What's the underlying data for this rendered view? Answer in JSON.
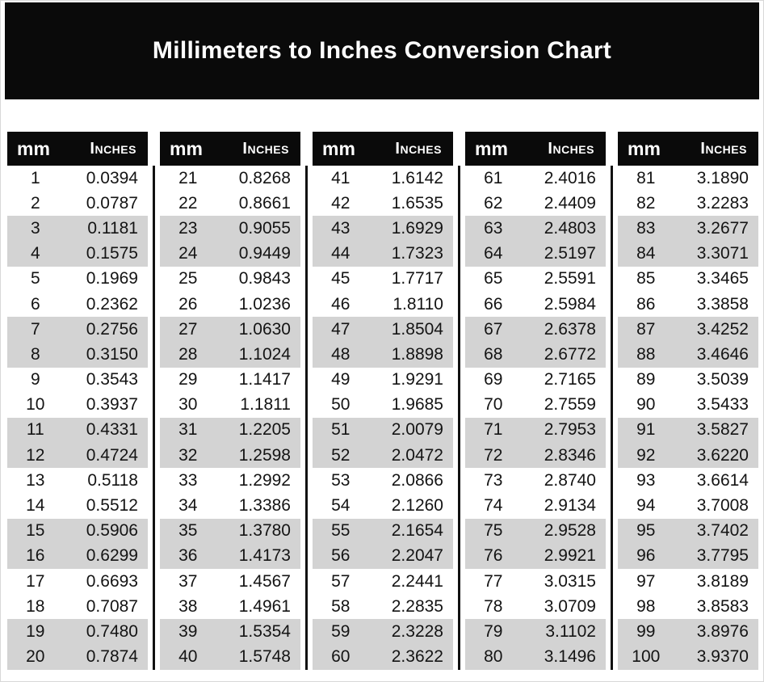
{
  "title": "Millimeters to Inches Conversion Chart",
  "colors": {
    "banner_bg": "#0a0a0a",
    "header_bg": "#0a0a0a",
    "header_text": "#ffffff",
    "stripe": "#d3d3d3",
    "divider": "#111111",
    "value_text": "#141414"
  },
  "chart_data": {
    "type": "table",
    "title": "Millimeters to Inches Conversion Chart",
    "columns": [
      "mm",
      "Inches"
    ],
    "stripe_pattern": "rows shaded in alternating pairs: rows 3-4, 7-8, 11-12, 15-16, 19-20 of each sub-table",
    "tables": [
      {
        "rows": [
          [
            "1",
            "0.0394"
          ],
          [
            "2",
            "0.0787"
          ],
          [
            "3",
            "0.1181"
          ],
          [
            "4",
            "0.1575"
          ],
          [
            "5",
            "0.1969"
          ],
          [
            "6",
            "0.2362"
          ],
          [
            "7",
            "0.2756"
          ],
          [
            "8",
            "0.3150"
          ],
          [
            "9",
            "0.3543"
          ],
          [
            "10",
            "0.3937"
          ],
          [
            "11",
            "0.4331"
          ],
          [
            "12",
            "0.4724"
          ],
          [
            "13",
            "0.5118"
          ],
          [
            "14",
            "0.5512"
          ],
          [
            "15",
            "0.5906"
          ],
          [
            "16",
            "0.6299"
          ],
          [
            "17",
            "0.6693"
          ],
          [
            "18",
            "0.7087"
          ],
          [
            "19",
            "0.7480"
          ],
          [
            "20",
            "0.7874"
          ]
        ]
      },
      {
        "rows": [
          [
            "21",
            "0.8268"
          ],
          [
            "22",
            "0.8661"
          ],
          [
            "23",
            "0.9055"
          ],
          [
            "24",
            "0.9449"
          ],
          [
            "25",
            "0.9843"
          ],
          [
            "26",
            "1.0236"
          ],
          [
            "27",
            "1.0630"
          ],
          [
            "28",
            "1.1024"
          ],
          [
            "29",
            "1.1417"
          ],
          [
            "30",
            "1.1811"
          ],
          [
            "31",
            "1.2205"
          ],
          [
            "32",
            "1.2598"
          ],
          [
            "33",
            "1.2992"
          ],
          [
            "34",
            "1.3386"
          ],
          [
            "35",
            "1.3780"
          ],
          [
            "36",
            "1.4173"
          ],
          [
            "37",
            "1.4567"
          ],
          [
            "38",
            "1.4961"
          ],
          [
            "39",
            "1.5354"
          ],
          [
            "40",
            "1.5748"
          ]
        ]
      },
      {
        "rows": [
          [
            "41",
            "1.6142"
          ],
          [
            "42",
            "1.6535"
          ],
          [
            "43",
            "1.6929"
          ],
          [
            "44",
            "1.7323"
          ],
          [
            "45",
            "1.7717"
          ],
          [
            "46",
            "1.8110"
          ],
          [
            "47",
            "1.8504"
          ],
          [
            "48",
            "1.8898"
          ],
          [
            "49",
            "1.9291"
          ],
          [
            "50",
            "1.9685"
          ],
          [
            "51",
            "2.0079"
          ],
          [
            "52",
            "2.0472"
          ],
          [
            "53",
            "2.0866"
          ],
          [
            "54",
            "2.1260"
          ],
          [
            "55",
            "2.1654"
          ],
          [
            "56",
            "2.2047"
          ],
          [
            "57",
            "2.2441"
          ],
          [
            "58",
            "2.2835"
          ],
          [
            "59",
            "2.3228"
          ],
          [
            "60",
            "2.3622"
          ]
        ]
      },
      {
        "rows": [
          [
            "61",
            "2.4016"
          ],
          [
            "62",
            "2.4409"
          ],
          [
            "63",
            "2.4803"
          ],
          [
            "64",
            "2.5197"
          ],
          [
            "65",
            "2.5591"
          ],
          [
            "66",
            "2.5984"
          ],
          [
            "67",
            "2.6378"
          ],
          [
            "68",
            "2.6772"
          ],
          [
            "69",
            "2.7165"
          ],
          [
            "70",
            "2.7559"
          ],
          [
            "71",
            "2.7953"
          ],
          [
            "72",
            "2.8346"
          ],
          [
            "73",
            "2.8740"
          ],
          [
            "74",
            "2.9134"
          ],
          [
            "75",
            "2.9528"
          ],
          [
            "76",
            "2.9921"
          ],
          [
            "77",
            "3.0315"
          ],
          [
            "78",
            "3.0709"
          ],
          [
            "79",
            "3.1102"
          ],
          [
            "80",
            "3.1496"
          ]
        ]
      },
      {
        "rows": [
          [
            "81",
            "3.1890"
          ],
          [
            "82",
            "3.2283"
          ],
          [
            "83",
            "3.2677"
          ],
          [
            "84",
            "3.3071"
          ],
          [
            "85",
            "3.3465"
          ],
          [
            "86",
            "3.3858"
          ],
          [
            "87",
            "3.4252"
          ],
          [
            "88",
            "3.4646"
          ],
          [
            "89",
            "3.5039"
          ],
          [
            "90",
            "3.5433"
          ],
          [
            "91",
            "3.5827"
          ],
          [
            "92",
            "3.6220"
          ],
          [
            "93",
            "3.6614"
          ],
          [
            "94",
            "3.7008"
          ],
          [
            "95",
            "3.7402"
          ],
          [
            "96",
            "3.7795"
          ],
          [
            "97",
            "3.8189"
          ],
          [
            "98",
            "3.8583"
          ],
          [
            "99",
            "3.8976"
          ],
          [
            "100",
            "3.9370"
          ]
        ]
      }
    ]
  }
}
